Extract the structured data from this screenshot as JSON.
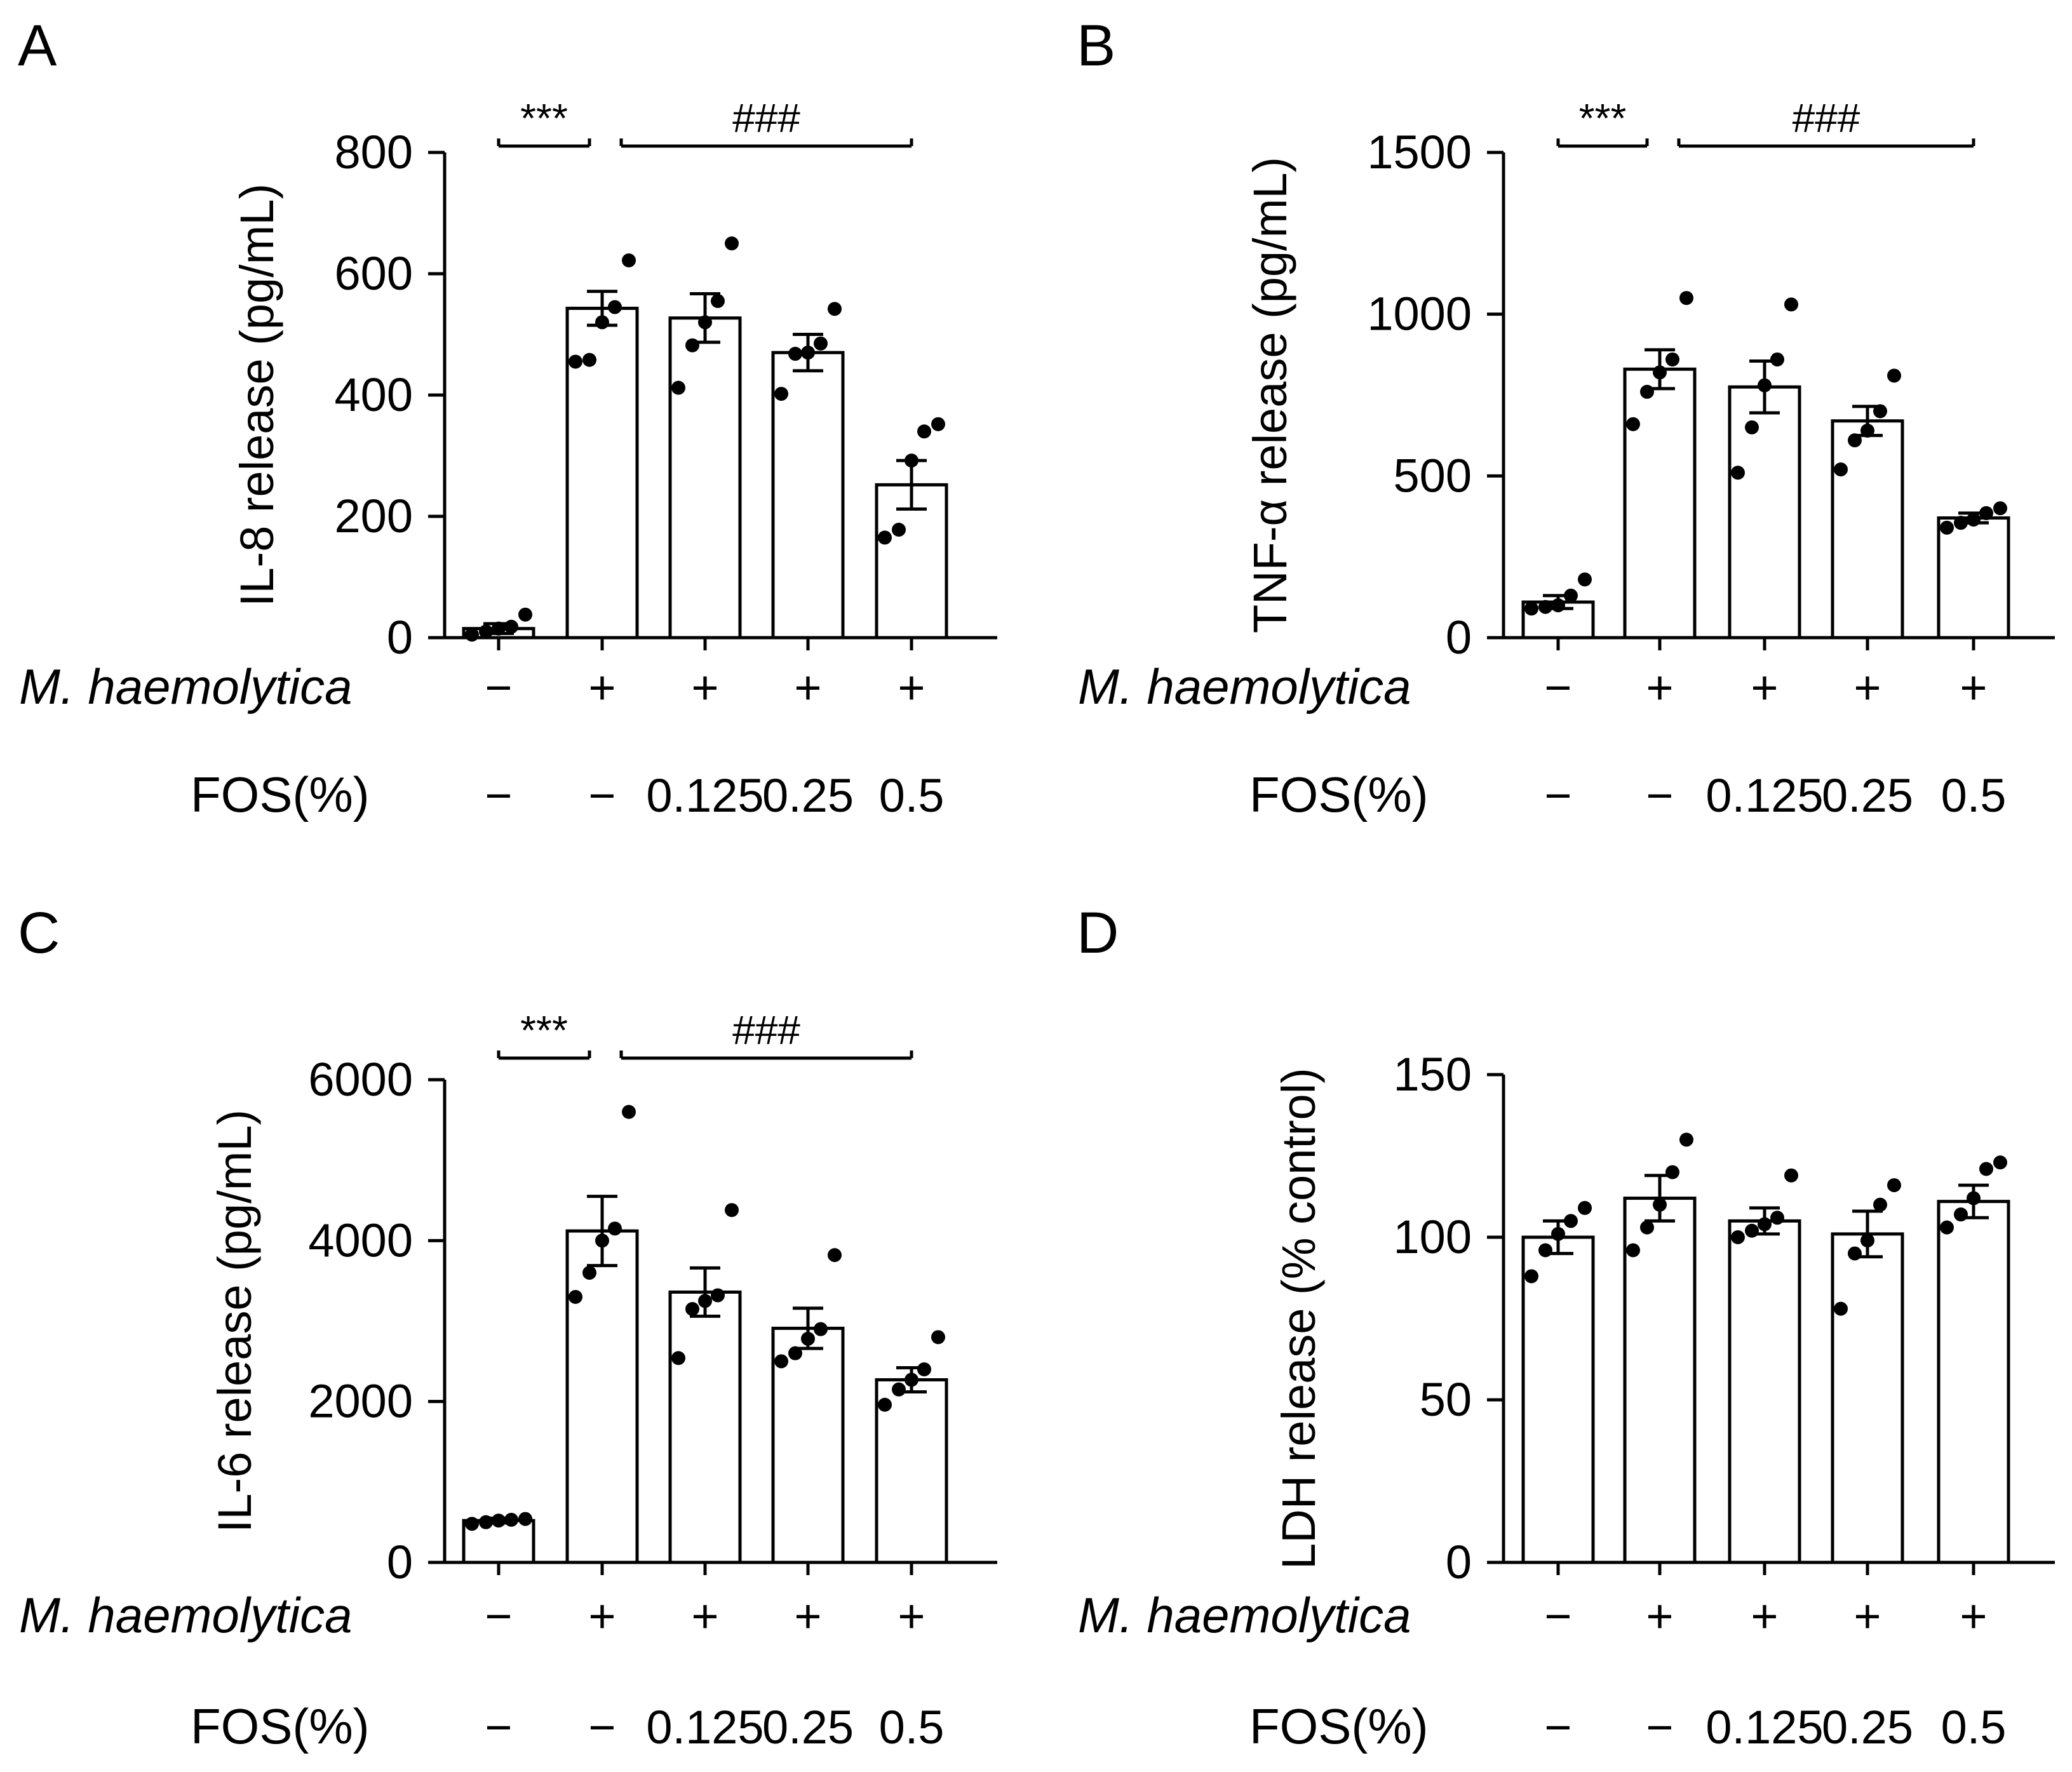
{
  "figure": {
    "row_labels": {
      "mh": "M. haemolytica",
      "fos": "FOS(%)"
    }
  },
  "chart_data": [
    {
      "panel": "A",
      "type": "bar",
      "ylabel": "IL-8 release (pg/mL)",
      "ylim": [
        0,
        800
      ],
      "yticks": [
        0,
        200,
        400,
        600,
        800
      ],
      "mh": [
        "−",
        "+",
        "+",
        "+",
        "+"
      ],
      "fos": [
        "−",
        "−",
        "0.125",
        "0.25",
        "0.5"
      ],
      "means": [
        15,
        543,
        527,
        470,
        252
      ],
      "sem": [
        8,
        28,
        40,
        30,
        40
      ],
      "points": [
        [
          5,
          10,
          15,
          18,
          38
        ],
        [
          455,
          458,
          520,
          545,
          622
        ],
        [
          412,
          482,
          520,
          555,
          650
        ],
        [
          402,
          468,
          470,
          485,
          542
        ],
        [
          165,
          178,
          292,
          340,
          352
        ]
      ],
      "annotations": [
        {
          "text": "***",
          "from": 0,
          "to": 1,
          "level": 800
        },
        {
          "text": "###",
          "from": 1,
          "to": 4,
          "level": 800
        }
      ]
    },
    {
      "panel": "B",
      "type": "bar",
      "ylabel": "TNF-α release (pg/mL)",
      "ylim": [
        0,
        1500
      ],
      "yticks": [
        0,
        500,
        1000,
        1500
      ],
      "mh": [
        "−",
        "+",
        "+",
        "+",
        "+"
      ],
      "fos": [
        "−",
        "−",
        "0.125",
        "0.25",
        "0.5"
      ],
      "means": [
        110,
        830,
        775,
        670,
        370
      ],
      "sem": [
        20,
        60,
        80,
        45,
        15
      ],
      "points": [
        [
          90,
          95,
          100,
          130,
          180
        ],
        [
          660,
          760,
          820,
          860,
          1050
        ],
        [
          510,
          650,
          780,
          860,
          1030
        ],
        [
          520,
          610,
          640,
          700,
          810
        ],
        [
          340,
          355,
          365,
          385,
          400
        ]
      ],
      "annotations": [
        {
          "text": "***",
          "from": 0,
          "to": 1,
          "level": 1500
        },
        {
          "text": "###",
          "from": 1,
          "to": 4,
          "level": 1500
        }
      ]
    },
    {
      "panel": "C",
      "type": "bar",
      "ylabel": "IL-6 release (pg/mL)",
      "ylim": [
        0,
        6000
      ],
      "yticks": [
        0,
        2000,
        4000,
        6000
      ],
      "mh": [
        "−",
        "+",
        "+",
        "+",
        "+"
      ],
      "fos": [
        "−",
        "−",
        "0.125",
        "0.25",
        "0.5"
      ],
      "means": [
        520,
        4120,
        3360,
        2910,
        2270
      ],
      "sem": [
        30,
        430,
        300,
        250,
        150
      ],
      "points": [
        [
          480,
          500,
          520,
          530,
          540
        ],
        [
          3300,
          3600,
          4000,
          4150,
          5600
        ],
        [
          2540,
          3150,
          3250,
          3320,
          4380
        ],
        [
          2500,
          2600,
          2780,
          2900,
          3820
        ],
        [
          1960,
          2150,
          2270,
          2400,
          2800
        ]
      ],
      "annotations": [
        {
          "text": "***",
          "from": 0,
          "to": 1,
          "level": 6000
        },
        {
          "text": "###",
          "from": 1,
          "to": 4,
          "level": 6000
        }
      ]
    },
    {
      "panel": "D",
      "type": "bar",
      "ylabel": "LDH release (% control)",
      "ylim": [
        0,
        150
      ],
      "yticks": [
        0,
        50,
        100,
        150
      ],
      "mh": [
        "−",
        "+",
        "+",
        "+",
        "+"
      ],
      "fos": [
        "−",
        "−",
        "0.125",
        "0.25",
        "0.5"
      ],
      "means": [
        100,
        112,
        105,
        101,
        111
      ],
      "sem": [
        5,
        7,
        4,
        7,
        5
      ],
      "points": [
        [
          88,
          96,
          101,
          105,
          109
        ],
        [
          96,
          103,
          110,
          120,
          130
        ],
        [
          100,
          102,
          104,
          106,
          119
        ],
        [
          78,
          95,
          99,
          110,
          116
        ],
        [
          103,
          107,
          112,
          121,
          123
        ]
      ],
      "annotations": []
    }
  ]
}
